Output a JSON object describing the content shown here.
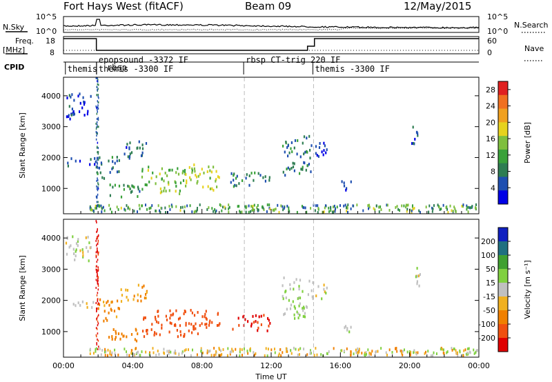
{
  "header": {
    "title": "Fort Hays West (fitACF)",
    "beam": "Beam 09",
    "date": "12/May/2015"
  },
  "aux_labels": {
    "nsky": "N.Sky",
    "nsearch": "N.Search",
    "freq_line1": "Freq.",
    "freq_line2": "[MHz]",
    "nave": "Nave",
    "cpid": "CPID",
    "sky_ticks": [
      "10^5",
      "10^0"
    ],
    "freq_ticks": [
      "18",
      "8"
    ],
    "nave_ticks": [
      "60",
      "0"
    ]
  },
  "programs": [
    {
      "t": 0.15,
      "name": "themis"
    },
    {
      "t": 1.95,
      "name": "epopsound -3372 IF"
    },
    {
      "t": 1.95,
      "name": "themis -3300 IF"
    },
    {
      "t": 1.95,
      "name": "rbsp"
    },
    {
      "t": 10.45,
      "name": "rbsp CT-trig 220 IF"
    },
    {
      "t": 14.45,
      "name": "themis -3300 IF"
    }
  ],
  "colors": {
    "power": [
      "#0000e6",
      "#1f4fb0",
      "#2e7d52",
      "#3aa13a",
      "#7fbf3f",
      "#e6d21f",
      "#f0a020",
      "#f07020",
      "#e02020"
    ],
    "velocity": [
      "#e00000",
      "#f05010",
      "#f08000",
      "#f0b020",
      "#c0c0c0",
      "#80d040",
      "#40a030",
      "#207080",
      "#1020c0"
    ],
    "dashed": "#bbbbbb"
  },
  "chart_data": [
    {
      "type": "heatmap",
      "panel": "power",
      "ylabel": "Slant Range [km]",
      "xlabel": "Time UT",
      "xlim": [
        0,
        24
      ],
      "ylim": [
        180,
        4600
      ],
      "x_ticks": [
        "00:00",
        "04:00",
        "08:00",
        "12:00",
        "16:00",
        "20:00",
        "00:00"
      ],
      "y_ticks": [
        1000,
        2000,
        3000,
        4000
      ],
      "colorbar": {
        "label": "Power [dB]",
        "ticks": [
          4,
          8,
          12,
          16,
          20,
          24,
          28
        ],
        "range": [
          0,
          30
        ]
      },
      "regions": [
        {
          "t0": 0.1,
          "t1": 1.8,
          "r0": 1700,
          "r1": 1950,
          "level": 4
        },
        {
          "t0": 0.1,
          "t1": 1.6,
          "r0": 3200,
          "r1": 4100,
          "level": 4
        },
        {
          "t0": 1.8,
          "t1": 3.2,
          "r0": 1300,
          "r1": 2000,
          "level": 8
        },
        {
          "t0": 3.2,
          "t1": 4.8,
          "r0": 1900,
          "r1": 2500,
          "level": 6
        },
        {
          "t0": 2.5,
          "t1": 4.5,
          "r0": 650,
          "r1": 1100,
          "level": 10
        },
        {
          "t0": 4.5,
          "t1": 7.0,
          "r0": 800,
          "r1": 1700,
          "level": 14
        },
        {
          "t0": 7.0,
          "t1": 9.0,
          "r0": 900,
          "r1": 1750,
          "level": 16
        },
        {
          "t0": 9.6,
          "t1": 11.9,
          "r0": 1000,
          "r1": 1500,
          "level": 9
        },
        {
          "t0": 12.6,
          "t1": 14.3,
          "r0": 1400,
          "r1": 2700,
          "level": 8
        },
        {
          "t0": 14.2,
          "t1": 15.2,
          "r0": 2000,
          "r1": 2600,
          "level": 5
        },
        {
          "t0": 16.0,
          "t1": 16.6,
          "r0": 900,
          "r1": 1200,
          "level": 5
        },
        {
          "t0": 20.0,
          "t1": 20.6,
          "r0": 2400,
          "r1": 3100,
          "level": 5
        },
        {
          "t0": 23.4,
          "t1": 23.9,
          "r0": 300,
          "r1": 400,
          "level": 10
        }
      ]
    },
    {
      "type": "heatmap",
      "panel": "velocity",
      "ylabel": "Slant Range [km]",
      "xlabel": "Time UT",
      "xlim": [
        0,
        24
      ],
      "ylim": [
        180,
        4600
      ],
      "x_ticks": [
        "00:00",
        "04:00",
        "08:00",
        "12:00",
        "16:00",
        "20:00",
        "00:00"
      ],
      "y_ticks": [
        1000,
        2000,
        3000,
        4000
      ],
      "colorbar": {
        "label": "Velocity [m s⁻¹]",
        "ticks": [
          "200",
          "100",
          "50",
          "15",
          "-15",
          "-50",
          "-100",
          "-200"
        ],
        "range": [
          -250,
          250
        ]
      },
      "regions": [
        {
          "t0": 0.1,
          "t1": 1.8,
          "r0": 1700,
          "r1": 1950,
          "level": -5
        },
        {
          "t0": 0.1,
          "t1": 1.6,
          "r0": 3200,
          "r1": 4100,
          "level": 0
        },
        {
          "t0": 1.8,
          "t1": 3.2,
          "r0": 1300,
          "r1": 2000,
          "level": -60
        },
        {
          "t0": 3.2,
          "t1": 4.8,
          "r0": 1900,
          "r1": 2500,
          "level": -40
        },
        {
          "t0": 2.5,
          "t1": 4.5,
          "r0": 650,
          "r1": 1100,
          "level": -70
        },
        {
          "t0": 4.5,
          "t1": 7.0,
          "r0": 800,
          "r1": 1700,
          "level": -180
        },
        {
          "t0": 7.0,
          "t1": 9.0,
          "r0": 900,
          "r1": 1750,
          "level": -160
        },
        {
          "t0": 9.6,
          "t1": 11.9,
          "r0": 1000,
          "r1": 1500,
          "level": -210
        },
        {
          "t0": 12.6,
          "t1": 14.3,
          "r0": 1400,
          "r1": 2700,
          "level": 20
        },
        {
          "t0": 14.2,
          "t1": 15.2,
          "r0": 2000,
          "r1": 2600,
          "level": 0
        },
        {
          "t0": 16.0,
          "t1": 16.6,
          "r0": 900,
          "r1": 1200,
          "level": 0
        },
        {
          "t0": 20.0,
          "t1": 20.6,
          "r0": 2400,
          "r1": 3100,
          "level": 0
        },
        {
          "t0": 23.4,
          "t1": 23.9,
          "r0": 300,
          "r1": 400,
          "level": 0
        }
      ]
    }
  ]
}
